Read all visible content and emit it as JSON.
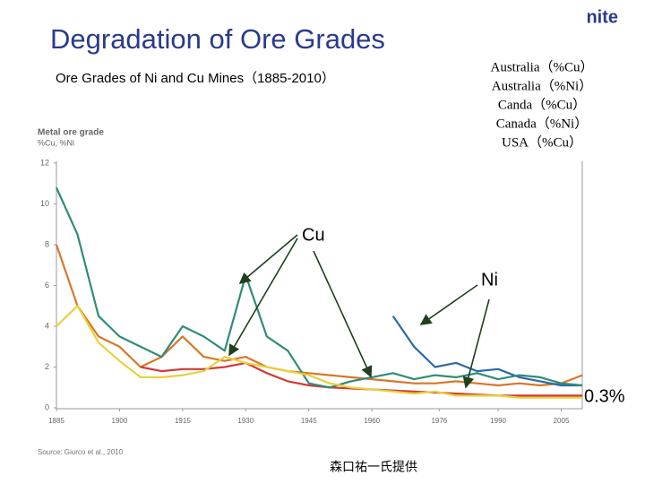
{
  "chart_data": {
    "type": "line",
    "title": "Degradation of Ore Grades",
    "subtitle": "Ore Grades of Ni and Cu Mines（1885-2010）",
    "y_label": "Metal ore grade",
    "y_unit_label": "%Cu, %Ni",
    "source": "Source: Giurco et al., 2010",
    "annotations": [
      "Cu",
      "Ni",
      "0.3%"
    ],
    "credit": "森口祐一氏提供",
    "logo": "nite",
    "x": [
      1885,
      1890,
      1895,
      1900,
      1905,
      1910,
      1915,
      1920,
      1925,
      1930,
      1935,
      1940,
      1945,
      1950,
      1955,
      1960,
      1965,
      1970,
      1975,
      1980,
      1985,
      1990,
      1995,
      2000,
      2005,
      2010
    ],
    "xlim": [
      1885,
      2010
    ],
    "xticks": [
      1885,
      1900,
      1915,
      1930,
      1945,
      1960,
      1976,
      1990,
      2005
    ],
    "ylim": [
      0,
      12
    ],
    "yticks": [
      0,
      2,
      4,
      6,
      8,
      10,
      12
    ],
    "series": [
      {
        "name": "Australia（%Cu）",
        "color": "#d8772a",
        "values": [
          8.0,
          5.0,
          3.5,
          3.0,
          2.0,
          2.5,
          3.5,
          2.5,
          2.3,
          2.5,
          2.0,
          1.8,
          1.7,
          1.6,
          1.5,
          1.4,
          1.3,
          1.2,
          1.2,
          1.3,
          1.2,
          1.1,
          1.2,
          1.1,
          1.2,
          1.6
        ]
      },
      {
        "name": "Australia（%Ni）",
        "color": "#2b6aa8",
        "values": [
          null,
          null,
          null,
          null,
          null,
          null,
          null,
          null,
          null,
          null,
          null,
          null,
          null,
          null,
          null,
          null,
          4.5,
          3.0,
          2.0,
          2.2,
          1.8,
          1.9,
          1.5,
          1.3,
          1.1,
          1.1
        ]
      },
      {
        "name": "Canda（%Cu）",
        "color": "#d23a3a",
        "values": [
          null,
          null,
          null,
          null,
          2.0,
          1.8,
          1.9,
          1.9,
          2.0,
          2.2,
          1.7,
          1.3,
          1.1,
          1.0,
          0.95,
          0.9,
          0.85,
          0.8,
          0.75,
          0.7,
          0.65,
          0.6,
          0.6,
          0.6,
          0.6,
          0.6
        ]
      },
      {
        "name": "Canada（%Ni）",
        "color": "#2f8c78",
        "values": [
          10.8,
          8.5,
          4.5,
          3.5,
          3.0,
          2.5,
          4.0,
          3.5,
          2.8,
          6.5,
          3.5,
          2.8,
          1.2,
          1.0,
          1.3,
          1.5,
          1.7,
          1.4,
          1.6,
          1.5,
          1.7,
          1.4,
          1.6,
          1.5,
          1.2,
          1.1
        ]
      },
      {
        "name": "USA（%Cu）",
        "color": "#e8d23a",
        "values": [
          4.0,
          5.0,
          3.2,
          2.3,
          1.5,
          1.5,
          1.6,
          1.8,
          2.5,
          2.2,
          2.0,
          1.8,
          1.6,
          1.2,
          1.0,
          0.9,
          0.8,
          0.7,
          0.8,
          0.6,
          0.6,
          0.6,
          0.5,
          0.5,
          0.5,
          0.5
        ]
      }
    ]
  }
}
